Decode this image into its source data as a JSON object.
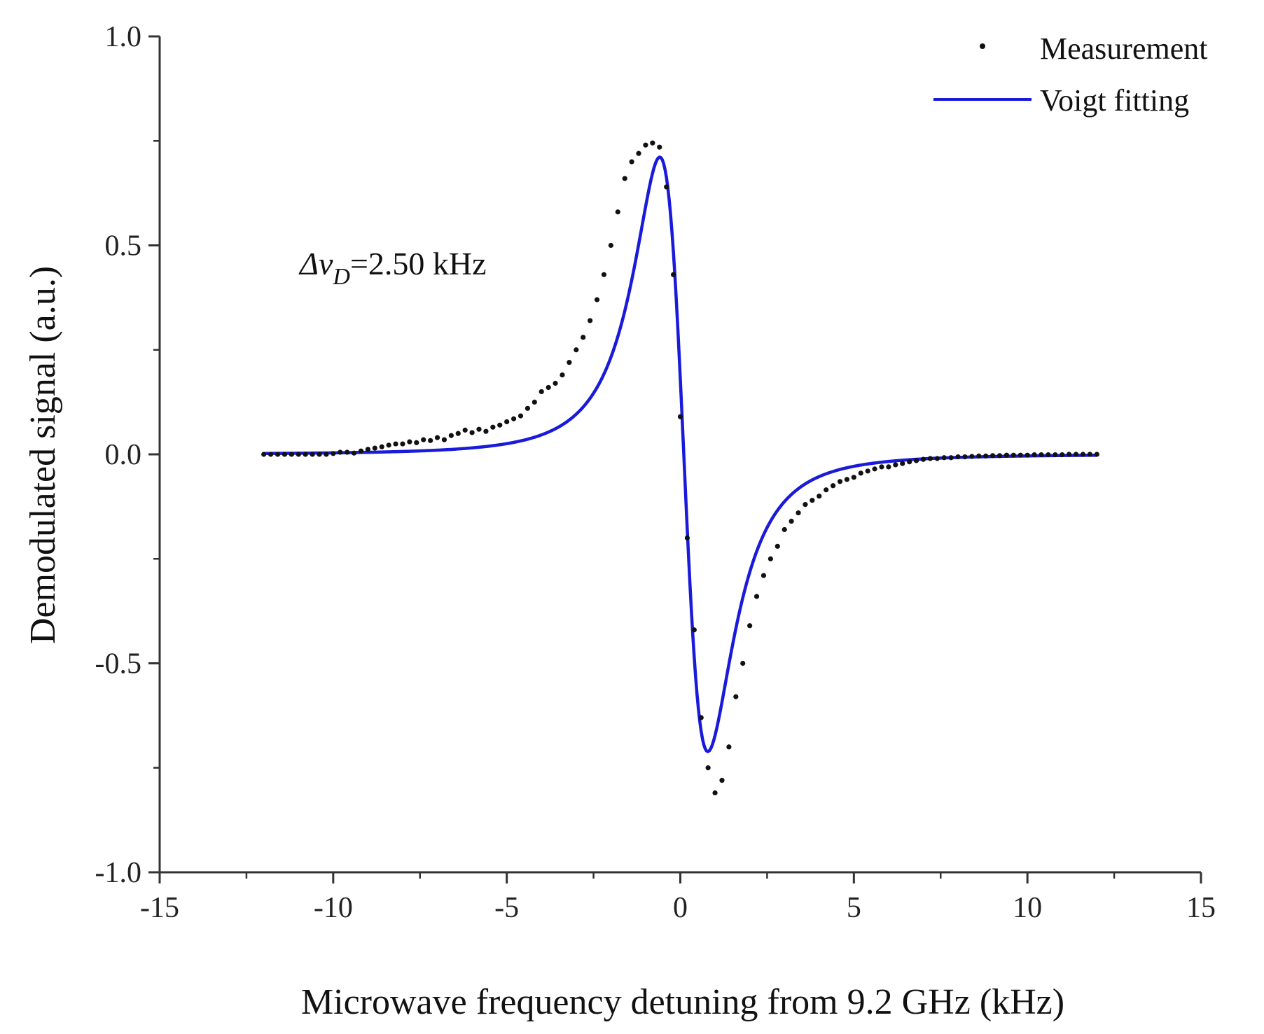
{
  "chart_data": {
    "type": "scatter",
    "title": "",
    "xlabel": "Microwave frequency detuning from 9.2 GHz (kHz)",
    "ylabel": "Demodulated signal (a.u.)",
    "xlim": [
      -15,
      15
    ],
    "ylim": [
      -1.0,
      1.0
    ],
    "x_ticks": [
      -15,
      -10,
      -5,
      0,
      5,
      10,
      15
    ],
    "x_tick_labels": [
      "-15",
      "-10",
      "-5",
      "0",
      "5",
      "10",
      "15"
    ],
    "y_ticks": [
      -1.0,
      -0.5,
      0.0,
      0.5,
      1.0
    ],
    "y_tick_labels": [
      "-1.0",
      "-0.5",
      "0.0",
      "0.5",
      "1.0"
    ],
    "grid": false,
    "legend_position": "top-right",
    "annotation": {
      "symbol": "Δν",
      "subscript": "D",
      "value": "=2.50 kHz"
    },
    "series": [
      {
        "name": "Measurement",
        "kind": "scatter",
        "color": "#111111",
        "x": [
          -12.0,
          -11.8,
          -11.6,
          -11.4,
          -11.2,
          -11.0,
          -10.8,
          -10.6,
          -10.4,
          -10.2,
          -10.0,
          -9.8,
          -9.6,
          -9.4,
          -9.2,
          -9.0,
          -8.8,
          -8.6,
          -8.4,
          -8.2,
          -8.0,
          -7.8,
          -7.6,
          -7.4,
          -7.2,
          -7.0,
          -6.8,
          -6.6,
          -6.4,
          -6.2,
          -6.0,
          -5.8,
          -5.6,
          -5.4,
          -5.2,
          -5.0,
          -4.8,
          -4.6,
          -4.4,
          -4.2,
          -4.0,
          -3.8,
          -3.6,
          -3.4,
          -3.2,
          -3.0,
          -2.8,
          -2.6,
          -2.4,
          -2.2,
          -2.0,
          -1.8,
          -1.6,
          -1.4,
          -1.2,
          -1.0,
          -0.8,
          -0.6,
          -0.4,
          -0.2,
          0.0,
          0.2,
          0.4,
          0.6,
          0.8,
          1.0,
          1.2,
          1.4,
          1.6,
          1.8,
          2.0,
          2.2,
          2.4,
          2.6,
          2.8,
          3.0,
          3.2,
          3.4,
          3.6,
          3.8,
          4.0,
          4.2,
          4.4,
          4.6,
          4.8,
          5.0,
          5.2,
          5.4,
          5.6,
          5.8,
          6.0,
          6.2,
          6.4,
          6.6,
          6.8,
          7.0,
          7.2,
          7.4,
          7.6,
          7.8,
          8.0,
          8.2,
          8.4,
          8.6,
          8.8,
          9.0,
          9.2,
          9.4,
          9.6,
          9.8,
          10.0,
          10.2,
          10.4,
          10.6,
          10.8,
          11.0,
          11.2,
          11.4,
          11.6,
          11.8,
          12.0
        ],
        "y": [
          0.0,
          0.0,
          0.0,
          0.0,
          0.0,
          0.0,
          0.0,
          0.0,
          0.0,
          0.0,
          0.002,
          0.005,
          0.005,
          0.003,
          0.008,
          0.012,
          0.015,
          0.018,
          0.022,
          0.025,
          0.025,
          0.03,
          0.028,
          0.035,
          0.033,
          0.04,
          0.035,
          0.045,
          0.05,
          0.058,
          0.052,
          0.06,
          0.055,
          0.065,
          0.07,
          0.078,
          0.085,
          0.092,
          0.11,
          0.125,
          0.15,
          0.16,
          0.17,
          0.19,
          0.22,
          0.25,
          0.28,
          0.32,
          0.37,
          0.43,
          0.5,
          0.58,
          0.66,
          0.7,
          0.72,
          0.74,
          0.745,
          0.735,
          0.64,
          0.43,
          0.09,
          -0.2,
          -0.42,
          -0.63,
          -0.75,
          -0.81,
          -0.78,
          -0.7,
          -0.58,
          -0.5,
          -0.41,
          -0.34,
          -0.29,
          -0.25,
          -0.22,
          -0.18,
          -0.16,
          -0.14,
          -0.12,
          -0.11,
          -0.1,
          -0.085,
          -0.075,
          -0.065,
          -0.06,
          -0.055,
          -0.045,
          -0.04,
          -0.035,
          -0.03,
          -0.03,
          -0.025,
          -0.022,
          -0.018,
          -0.015,
          -0.012,
          -0.01,
          -0.01,
          -0.008,
          -0.008,
          -0.006,
          -0.006,
          -0.005,
          -0.004,
          -0.004,
          -0.003,
          -0.003,
          -0.002,
          -0.002,
          -0.002,
          -0.002,
          -0.001,
          -0.001,
          -0.001,
          -0.001,
          -0.001,
          0.0,
          0.0,
          0.0,
          0.0,
          0.0
        ]
      },
      {
        "name": "Voigt fitting",
        "kind": "line",
        "color": "#1a1adb",
        "model": {
          "x0": 0.1,
          "w": 1.2,
          "amplitude": 2.19,
          "x_start": -12,
          "x_end": 12
        }
      }
    ]
  }
}
